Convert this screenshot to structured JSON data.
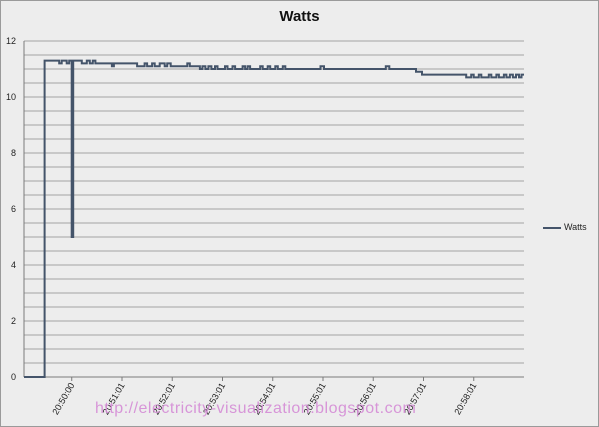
{
  "chart_data": {
    "type": "line",
    "title": "Watts",
    "ylim": [
      0,
      12
    ],
    "y_ticks": [
      0,
      2,
      4,
      6,
      8,
      10,
      12
    ],
    "x_tick_labels": [
      "20:50:00",
      "20:51:01",
      "20:52:01",
      "20:53:01",
      "20:54:01",
      "20:55:01",
      "20:56:01",
      "20:57:01",
      "20:58:01"
    ],
    "grid": "horizontal",
    "legend_position": "right",
    "series": [
      {
        "name": "Watts",
        "color": "#44546a",
        "points": [
          [
            -0.95,
            0
          ],
          [
            -0.54,
            0
          ],
          [
            -0.54,
            11.3
          ],
          [
            -0.25,
            11.3
          ],
          [
            -0.25,
            11.2
          ],
          [
            -0.2,
            11.2
          ],
          [
            -0.2,
            11.3
          ],
          [
            -0.1,
            11.3
          ],
          [
            -0.1,
            11.2
          ],
          [
            -0.05,
            11.2
          ],
          [
            -0.05,
            11.3
          ],
          [
            0.0,
            11.3
          ],
          [
            0.0,
            5.0
          ],
          [
            0.03,
            5.0
          ],
          [
            0.03,
            11.3
          ],
          [
            0.2,
            11.3
          ],
          [
            0.2,
            11.2
          ],
          [
            0.3,
            11.2
          ],
          [
            0.3,
            11.3
          ],
          [
            0.36,
            11.3
          ],
          [
            0.36,
            11.2
          ],
          [
            0.42,
            11.2
          ],
          [
            0.42,
            11.3
          ],
          [
            0.47,
            11.3
          ],
          [
            0.47,
            11.2
          ],
          [
            0.8,
            11.2
          ],
          [
            0.8,
            11.1
          ],
          [
            0.84,
            11.1
          ],
          [
            0.84,
            11.2
          ],
          [
            1.3,
            11.2
          ],
          [
            1.3,
            11.1
          ],
          [
            1.45,
            11.1
          ],
          [
            1.45,
            11.2
          ],
          [
            1.5,
            11.2
          ],
          [
            1.5,
            11.1
          ],
          [
            1.6,
            11.1
          ],
          [
            1.6,
            11.2
          ],
          [
            1.65,
            11.2
          ],
          [
            1.65,
            11.1
          ],
          [
            1.75,
            11.1
          ],
          [
            1.75,
            11.2
          ],
          [
            1.85,
            11.2
          ],
          [
            1.85,
            11.1
          ],
          [
            1.9,
            11.1
          ],
          [
            1.9,
            11.2
          ],
          [
            1.97,
            11.2
          ],
          [
            1.97,
            11.1
          ],
          [
            2.3,
            11.1
          ],
          [
            2.3,
            11.2
          ],
          [
            2.35,
            11.2
          ],
          [
            2.35,
            11.1
          ],
          [
            2.55,
            11.1
          ],
          [
            2.55,
            11.0
          ],
          [
            2.6,
            11.0
          ],
          [
            2.6,
            11.1
          ],
          [
            2.66,
            11.1
          ],
          [
            2.66,
            11.0
          ],
          [
            2.72,
            11.0
          ],
          [
            2.72,
            11.1
          ],
          [
            2.78,
            11.1
          ],
          [
            2.78,
            11.0
          ],
          [
            2.85,
            11.0
          ],
          [
            2.85,
            11.1
          ],
          [
            2.9,
            11.1
          ],
          [
            2.9,
            11.0
          ],
          [
            3.05,
            11.0
          ],
          [
            3.05,
            11.1
          ],
          [
            3.1,
            11.1
          ],
          [
            3.1,
            11.0
          ],
          [
            3.2,
            11.0
          ],
          [
            3.2,
            11.1
          ],
          [
            3.25,
            11.1
          ],
          [
            3.25,
            11.0
          ],
          [
            3.4,
            11.0
          ],
          [
            3.4,
            11.1
          ],
          [
            3.45,
            11.1
          ],
          [
            3.45,
            11.0
          ],
          [
            3.5,
            11.0
          ],
          [
            3.5,
            11.1
          ],
          [
            3.55,
            11.1
          ],
          [
            3.55,
            11.0
          ],
          [
            3.75,
            11.0
          ],
          [
            3.75,
            11.1
          ],
          [
            3.8,
            11.1
          ],
          [
            3.8,
            11.0
          ],
          [
            3.9,
            11.0
          ],
          [
            3.9,
            11.1
          ],
          [
            3.95,
            11.1
          ],
          [
            3.95,
            11.0
          ],
          [
            4.05,
            11.0
          ],
          [
            4.05,
            11.1
          ],
          [
            4.1,
            11.1
          ],
          [
            4.1,
            11.0
          ],
          [
            4.2,
            11.0
          ],
          [
            4.2,
            11.1
          ],
          [
            4.25,
            11.1
          ],
          [
            4.25,
            11.0
          ],
          [
            4.95,
            11.0
          ],
          [
            4.95,
            11.1
          ],
          [
            5.02,
            11.1
          ],
          [
            5.02,
            11.0
          ],
          [
            6.25,
            11.0
          ],
          [
            6.25,
            11.1
          ],
          [
            6.32,
            11.1
          ],
          [
            6.32,
            11.0
          ],
          [
            6.85,
            11.0
          ],
          [
            6.85,
            10.9
          ],
          [
            6.97,
            10.9
          ],
          [
            6.97,
            10.8
          ],
          [
            7.85,
            10.8
          ],
          [
            7.85,
            10.7
          ],
          [
            7.95,
            10.7
          ],
          [
            7.95,
            10.8
          ],
          [
            8.0,
            10.8
          ],
          [
            8.0,
            10.7
          ],
          [
            8.1,
            10.7
          ],
          [
            8.1,
            10.8
          ],
          [
            8.15,
            10.8
          ],
          [
            8.15,
            10.7
          ],
          [
            8.3,
            10.7
          ],
          [
            8.3,
            10.8
          ],
          [
            8.35,
            10.8
          ],
          [
            8.35,
            10.7
          ],
          [
            8.45,
            10.7
          ],
          [
            8.45,
            10.8
          ],
          [
            8.5,
            10.8
          ],
          [
            8.5,
            10.7
          ],
          [
            8.6,
            10.7
          ],
          [
            8.6,
            10.8
          ],
          [
            8.65,
            10.8
          ],
          [
            8.65,
            10.7
          ],
          [
            8.72,
            10.7
          ],
          [
            8.72,
            10.8
          ],
          [
            8.78,
            10.8
          ],
          [
            8.78,
            10.7
          ],
          [
            8.84,
            10.7
          ],
          [
            8.84,
            10.8
          ],
          [
            8.9,
            10.8
          ],
          [
            8.9,
            10.7
          ],
          [
            8.95,
            10.7
          ],
          [
            8.95,
            10.8
          ],
          [
            9.0,
            10.8
          ]
        ]
      }
    ]
  },
  "watermark": "http://electricity-visualization.blogspot.com"
}
